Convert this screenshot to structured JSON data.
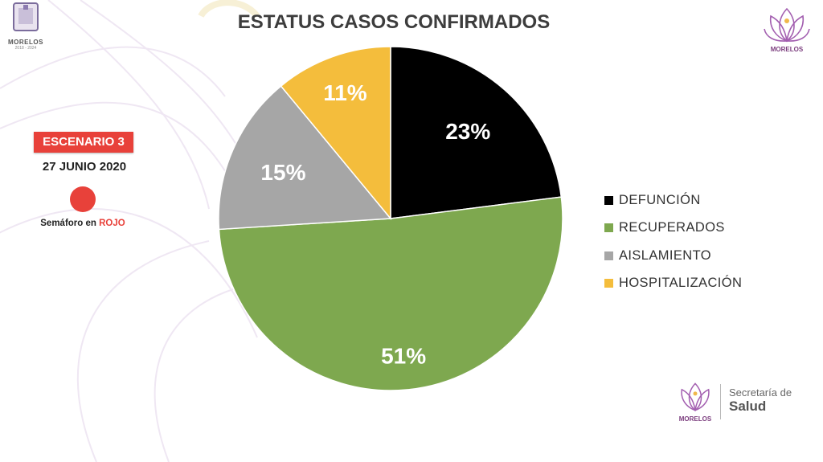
{
  "header": {
    "title": "ESTATUS CASOS CONFIRMADOS"
  },
  "left_logo": {
    "name": "MORELOS",
    "years": "2018 - 2024"
  },
  "scenario": {
    "badge": "ESCENARIO 3",
    "date": "27 JUNIO 2020",
    "semaforo_prefix": "Semáforo en ",
    "semaforo_color_word": "ROJO",
    "dot_color": "#e8413a"
  },
  "right_logo": {
    "name": "MORELOS"
  },
  "footer": {
    "secretaria": "Secretaría de",
    "salud": "Salud"
  },
  "chart_data": {
    "type": "pie",
    "title": "ESTATUS CASOS CONFIRMADOS",
    "start": "12 o'clock, clockwise",
    "legend_position": "right",
    "slices": [
      {
        "label": "DEFUNCIÓN",
        "value": 23,
        "display": "23%",
        "color": "#000000",
        "label_color": "#ffffff"
      },
      {
        "label": "RECUPERADOS",
        "value": 51,
        "display": "51%",
        "color": "#7ea84f",
        "label_color": "#ffffff"
      },
      {
        "label": "AISLAMIENTO",
        "value": 15,
        "display": "15%",
        "color": "#a6a6a6",
        "label_color": "#ffffff"
      },
      {
        "label": "HOSPITALIZACIÓN",
        "value": 11,
        "display": "11%",
        "color": "#f4bd3c",
        "label_color": "#ffffff"
      }
    ]
  }
}
